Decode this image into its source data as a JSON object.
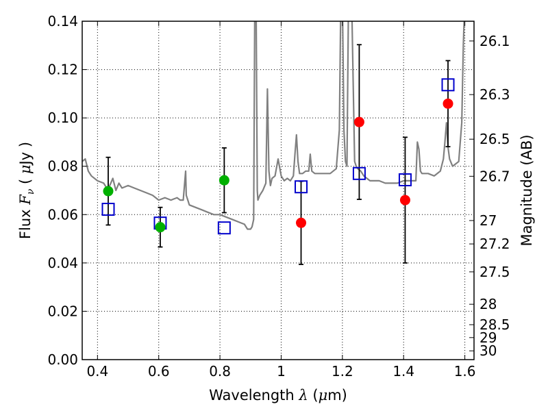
{
  "chart_data": {
    "type": "scatter",
    "xlabel": "Wavelength λ (μm)",
    "ylabel": "Flux F_ν (μJy)",
    "y2label": "Magnitude (AB)",
    "xlim": [
      0.35,
      1.63
    ],
    "ylim": [
      0.0,
      0.14
    ],
    "grid": true,
    "x_ticks": [
      "0.4",
      "0.6",
      "0.8",
      "1",
      "1.2",
      "1.4",
      "1.6"
    ],
    "y_ticks": [
      "0.00",
      "0.02",
      "0.04",
      "0.06",
      "0.08",
      "0.10",
      "0.12",
      "0.14"
    ],
    "mag_ticks": [
      "26.1",
      "26.3",
      "26.5",
      "26.7",
      "27",
      "27.2",
      "27.5",
      "28",
      "28.5",
      "29",
      "30"
    ],
    "colors": {
      "green": "#00b000",
      "red": "#ff0000",
      "blue": "#0000cc",
      "model": "#808080",
      "errorbar": "#000000"
    },
    "series": [
      {
        "marker": "circle-green",
        "x": [
          0.435,
          0.605,
          0.814
        ],
        "y": [
          0.0697,
          0.0548,
          0.0742
        ],
        "yerr": [
          0.014,
          0.0082,
          0.0134
        ]
      },
      {
        "marker": "circle-red",
        "x": [
          1.065,
          1.255,
          1.405,
          1.545
        ],
        "y": [
          0.0566,
          0.0983,
          0.066,
          0.1059
        ],
        "yerr": [
          0.0172,
          0.032,
          0.026,
          0.0178
        ]
      },
      {
        "marker": "square-blue",
        "x": [
          0.435,
          0.605,
          0.814,
          1.065,
          1.255,
          1.405,
          1.545
        ],
        "y": [
          0.0622,
          0.0565,
          0.0545,
          0.0715,
          0.077,
          0.0744,
          0.1137
        ]
      },
      {
        "marker": "line-model",
        "x": [
          0.35,
          0.36,
          0.37,
          0.38,
          0.4,
          0.42,
          0.43,
          0.44,
          0.45,
          0.46,
          0.47,
          0.48,
          0.5,
          0.52,
          0.54,
          0.56,
          0.58,
          0.6,
          0.62,
          0.64,
          0.66,
          0.67,
          0.68,
          0.688,
          0.69,
          0.695,
          0.7,
          0.72,
          0.74,
          0.76,
          0.78,
          0.8,
          0.82,
          0.84,
          0.86,
          0.88,
          0.89,
          0.9,
          0.905,
          0.91,
          0.914,
          0.918,
          0.922,
          0.924,
          0.93,
          0.94,
          0.95,
          0.955,
          0.96,
          0.965,
          0.97,
          0.98,
          0.99,
          1.0,
          1.01,
          1.02,
          1.03,
          1.04,
          1.045,
          1.05,
          1.055,
          1.06,
          1.07,
          1.08,
          1.09,
          1.095,
          1.1,
          1.11,
          1.12,
          1.14,
          1.16,
          1.18,
          1.19,
          1.195,
          1.2,
          1.205,
          1.21,
          1.215,
          1.22,
          1.23,
          1.24,
          1.245,
          1.25,
          1.26,
          1.27,
          1.28,
          1.29,
          1.3,
          1.32,
          1.34,
          1.36,
          1.38,
          1.4,
          1.42,
          1.44,
          1.445,
          1.45,
          1.455,
          1.46,
          1.48,
          1.5,
          1.52,
          1.53,
          1.535,
          1.54,
          1.545,
          1.55,
          1.56,
          1.58,
          1.59,
          1.595,
          1.6,
          1.605,
          1.61
        ],
        "y": [
          0.082,
          0.083,
          0.078,
          0.076,
          0.074,
          0.073,
          0.071,
          0.072,
          0.075,
          0.07,
          0.073,
          0.071,
          0.072,
          0.071,
          0.07,
          0.069,
          0.068,
          0.066,
          0.067,
          0.066,
          0.067,
          0.066,
          0.066,
          0.078,
          0.068,
          0.066,
          0.064,
          0.063,
          0.062,
          0.061,
          0.06,
          0.06,
          0.059,
          0.058,
          0.057,
          0.056,
          0.054,
          0.054,
          0.055,
          0.058,
          0.15,
          0.15,
          0.07,
          0.066,
          0.068,
          0.07,
          0.073,
          0.112,
          0.078,
          0.072,
          0.075,
          0.076,
          0.083,
          0.076,
          0.074,
          0.075,
          0.074,
          0.076,
          0.085,
          0.093,
          0.082,
          0.077,
          0.077,
          0.078,
          0.078,
          0.085,
          0.078,
          0.077,
          0.077,
          0.077,
          0.077,
          0.079,
          0.095,
          0.15,
          0.15,
          0.095,
          0.082,
          0.08,
          0.15,
          0.15,
          0.082,
          0.08,
          0.079,
          0.078,
          0.076,
          0.075,
          0.074,
          0.074,
          0.074,
          0.073,
          0.073,
          0.073,
          0.074,
          0.074,
          0.074,
          0.09,
          0.087,
          0.078,
          0.077,
          0.077,
          0.076,
          0.078,
          0.083,
          0.09,
          0.098,
          0.088,
          0.083,
          0.08,
          0.082,
          0.098,
          0.13,
          0.15,
          0.15,
          0.15
        ]
      }
    ]
  }
}
